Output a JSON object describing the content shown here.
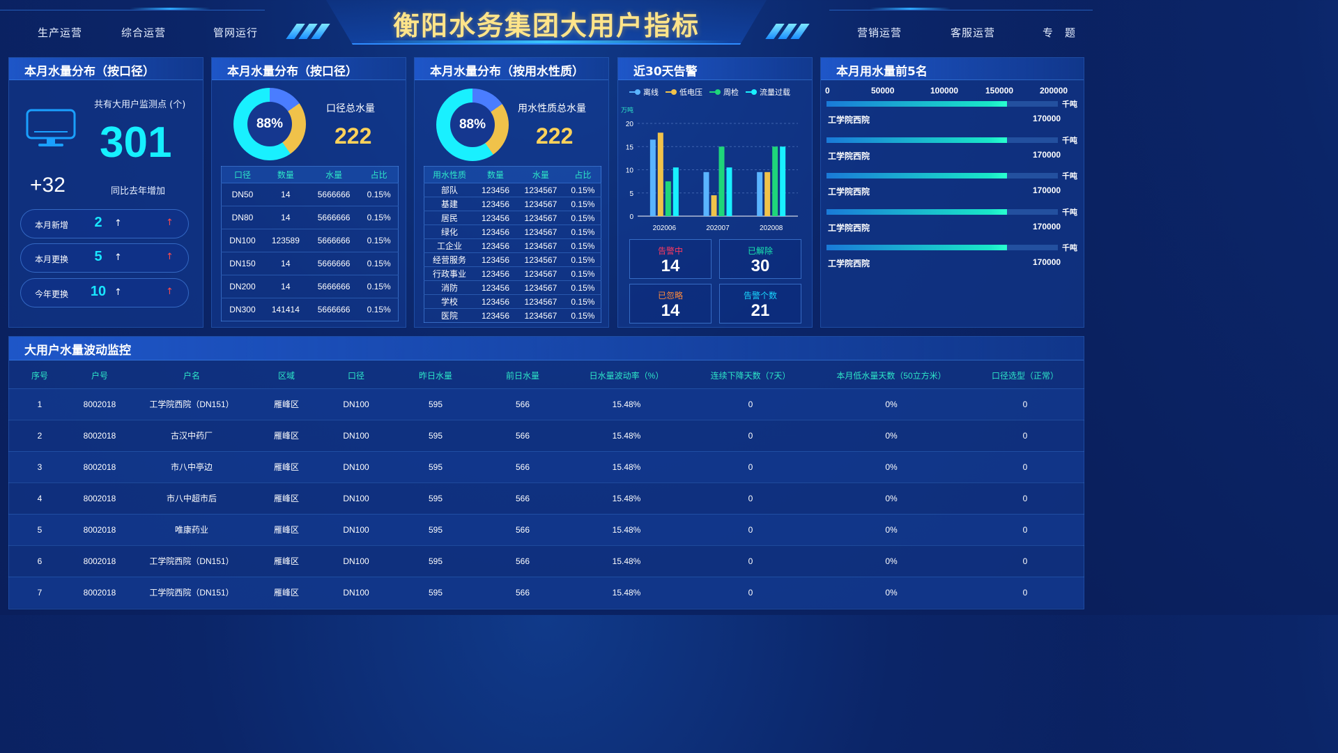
{
  "header": {
    "title": "衡阳水务集团大用户指标",
    "nav_left": [
      "生产运营",
      "综合运营",
      "管网运行"
    ],
    "nav_right": [
      "营销运营",
      "客服运营",
      "专　题"
    ]
  },
  "panel_caliber_stats": {
    "title": "本月水量分布（按口径）",
    "monitor_label": "共有大用户监测点 (个)",
    "monitor_count": "301",
    "yoy_increase": "+32",
    "yoy_label": "同比去年增加",
    "stats": [
      {
        "label": "本月新增",
        "value": "2",
        "arrow": "↑",
        "trend": "↑"
      },
      {
        "label": "本月更换",
        "value": "5",
        "arrow": "↑",
        "trend": "↑"
      },
      {
        "label": "今年更换",
        "value": "10",
        "arrow": "↑",
        "trend": "↑"
      }
    ],
    "icon": "monitor-icon"
  },
  "panel_caliber": {
    "title": "本月水量分布（按口径）",
    "donut_pct": "88%",
    "donut_label": "口径总水量",
    "donut_value": "222",
    "headers": [
      "口径",
      "数量",
      "水量",
      "占比"
    ],
    "rows": [
      [
        "DN50",
        "14",
        "5666666",
        "0.15%"
      ],
      [
        "DN80",
        "14",
        "5666666",
        "0.15%"
      ],
      [
        "DN100",
        "123589",
        "5666666",
        "0.15%"
      ],
      [
        "DN150",
        "14",
        "5666666",
        "0.15%"
      ],
      [
        "DN200",
        "14",
        "5666666",
        "0.15%"
      ],
      [
        "DN300",
        "141414",
        "5666666",
        "0.15%"
      ]
    ]
  },
  "panel_nature": {
    "title": "本月水量分布（按用水性质）",
    "donut_pct": "88%",
    "donut_label": "用水性质总水量",
    "donut_value": "222",
    "headers": [
      "用水性质",
      "数量",
      "水量",
      "占比"
    ],
    "rows": [
      [
        "部队",
        "123456",
        "1234567",
        "0.15%"
      ],
      [
        "基建",
        "123456",
        "1234567",
        "0.15%"
      ],
      [
        "居民",
        "123456",
        "1234567",
        "0.15%"
      ],
      [
        "绿化",
        "123456",
        "1234567",
        "0.15%"
      ],
      [
        "工企业",
        "123456",
        "1234567",
        "0.15%"
      ],
      [
        "经营服务",
        "123456",
        "1234567",
        "0.15%"
      ],
      [
        "行政事业",
        "123456",
        "1234567",
        "0.15%"
      ],
      [
        "消防",
        "123456",
        "1234567",
        "0.15%"
      ],
      [
        "学校",
        "123456",
        "1234567",
        "0.15%"
      ],
      [
        "医院",
        "123456",
        "1234567",
        "0.15%"
      ]
    ]
  },
  "donut_colors": {
    "main": "#19f0ff",
    "blue": "#4a7dff",
    "yellow": "#f0c24a"
  },
  "panel_alerts": {
    "title": "近30天告警",
    "ylabel": "万吨",
    "boxes": [
      {
        "label": "告警中",
        "value": "14",
        "color": "#ff3860"
      },
      {
        "label": "已解除",
        "value": "30",
        "color": "#19e6b0"
      },
      {
        "label": "已忽略",
        "value": "14",
        "color": "#ff8a3d"
      },
      {
        "label": "告警个数",
        "value": "21",
        "color": "#19d6ff"
      }
    ]
  },
  "chart_data": {
    "type": "bar",
    "categories": [
      "202006",
      "202007",
      "202008"
    ],
    "series": [
      {
        "name": "离线",
        "color": "#5ab4ff",
        "values": [
          16.5,
          9.5,
          9.5
        ]
      },
      {
        "name": "低电压",
        "color": "#f0c24a",
        "values": [
          18,
          4.5,
          9.5
        ]
      },
      {
        "name": "周检",
        "color": "#1fd67a",
        "values": [
          7.5,
          15,
          15
        ]
      },
      {
        "name": "流量过载",
        "color": "#19f0ff",
        "values": [
          10.5,
          10.5,
          15
        ]
      }
    ],
    "ylim": [
      0,
      20
    ],
    "yticks": [
      "0",
      "5",
      "10",
      "15",
      "20"
    ],
    "ylabel": "万吨",
    "legend": "top"
  },
  "panel_top5": {
    "title": "本月用水量前5名",
    "axis": [
      "0",
      "50000",
      "100000",
      "150000",
      "200000"
    ],
    "axis_max": 200000,
    "unit": "千吨",
    "items": [
      {
        "name": "工学院西院",
        "value": "170000",
        "fill": 0.78
      },
      {
        "name": "工学院西院",
        "value": "170000",
        "fill": 0.78
      },
      {
        "name": "工学院西院",
        "value": "170000",
        "fill": 0.78
      },
      {
        "name": "工学院西院",
        "value": "170000",
        "fill": 0.78
      },
      {
        "name": "工学院西院",
        "value": "170000",
        "fill": 0.78
      }
    ]
  },
  "panel_monitor": {
    "title": "大用户水量波动监控",
    "headers": [
      "序号",
      "户号",
      "户名",
      "区域",
      "口径",
      "昨日水量",
      "前日水量",
      "日水量波动率（%）",
      "连续下降天数（7天）",
      "本月低水量天数（50立方米）",
      "口径选型（正常）"
    ],
    "rows": [
      [
        "1",
        "8002018",
        "工学院西院（DN151）",
        "雁峰区",
        "DN100",
        "595",
        "566",
        "15.48%",
        "0",
        "0%",
        "0"
      ],
      [
        "2",
        "8002018",
        "古汉中药厂",
        "雁峰区",
        "DN100",
        "595",
        "566",
        "15.48%",
        "0",
        "0%",
        "0"
      ],
      [
        "3",
        "8002018",
        "市八中亭边",
        "雁峰区",
        "DN100",
        "595",
        "566",
        "15.48%",
        "0",
        "0%",
        "0"
      ],
      [
        "4",
        "8002018",
        "市八中超市后",
        "雁峰区",
        "DN100",
        "595",
        "566",
        "15.48%",
        "0",
        "0%",
        "0"
      ],
      [
        "5",
        "8002018",
        "唯康药业",
        "雁峰区",
        "DN100",
        "595",
        "566",
        "15.48%",
        "0",
        "0%",
        "0"
      ],
      [
        "6",
        "8002018",
        "工学院西院（DN151）",
        "雁峰区",
        "DN100",
        "595",
        "566",
        "15.48%",
        "0",
        "0%",
        "0"
      ],
      [
        "7",
        "8002018",
        "工学院西院（DN151）",
        "雁峰区",
        "DN100",
        "595",
        "566",
        "15.48%",
        "0",
        "0%",
        "0"
      ]
    ]
  }
}
